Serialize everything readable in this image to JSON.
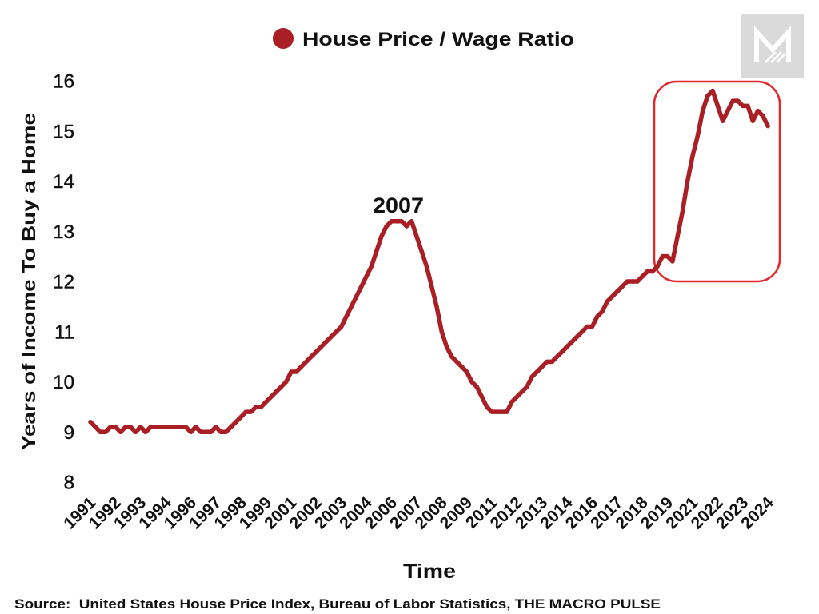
{
  "logo": {
    "icon": "macro-pulse-m-logo"
  },
  "source": {
    "text": "Source:  United States House Price Index, Bureau of Labor Statistics, THE MACRO PULSE"
  },
  "colors": {
    "series": "#A91F25",
    "highlight": "#E2262C",
    "text": "#111111",
    "logo_bg": "#DADADA",
    "logo_fg": "#FFFFFF"
  },
  "chart_data": {
    "type": "line",
    "xlabel": "Time",
    "ylabel": "Years of Income To Buy a Home",
    "ylim": [
      8,
      16
    ],
    "y_ticks": [
      8,
      9,
      10,
      11,
      12,
      13,
      14,
      15,
      16
    ],
    "x_tick_labels": [
      "1991",
      "1992",
      "1993",
      "1994",
      "1996",
      "1997",
      "1998",
      "1999",
      "2001",
      "2002",
      "2003",
      "2004",
      "2006",
      "2007",
      "2008",
      "2009",
      "2011",
      "2012",
      "2013",
      "2014",
      "2016",
      "2017",
      "2018",
      "2019",
      "2021",
      "2022",
      "2023",
      "2024"
    ],
    "grid": false,
    "legend_position": "top-center",
    "series": [
      {
        "name": "House Price / Wage Ratio",
        "color": "#A91F25",
        "points": [
          [
            1991.0,
            9.2
          ],
          [
            1991.25,
            9.1
          ],
          [
            1991.5,
            9.0
          ],
          [
            1991.75,
            9.0
          ],
          [
            1992.0,
            9.1
          ],
          [
            1992.25,
            9.1
          ],
          [
            1992.5,
            9.0
          ],
          [
            1992.75,
            9.1
          ],
          [
            1993.0,
            9.1
          ],
          [
            1993.25,
            9.0
          ],
          [
            1993.5,
            9.1
          ],
          [
            1993.75,
            9.0
          ],
          [
            1994.0,
            9.1
          ],
          [
            1994.25,
            9.1
          ],
          [
            1994.5,
            9.1
          ],
          [
            1994.75,
            9.1
          ],
          [
            1995.0,
            9.1
          ],
          [
            1995.25,
            9.1
          ],
          [
            1995.5,
            9.1
          ],
          [
            1995.75,
            9.1
          ],
          [
            1996.0,
            9.0
          ],
          [
            1996.25,
            9.1
          ],
          [
            1996.5,
            9.0
          ],
          [
            1996.75,
            9.0
          ],
          [
            1997.0,
            9.0
          ],
          [
            1997.25,
            9.1
          ],
          [
            1997.5,
            9.0
          ],
          [
            1997.75,
            9.0
          ],
          [
            1998.0,
            9.1
          ],
          [
            1998.25,
            9.2
          ],
          [
            1998.5,
            9.3
          ],
          [
            1998.75,
            9.4
          ],
          [
            1999.0,
            9.4
          ],
          [
            1999.25,
            9.5
          ],
          [
            1999.5,
            9.5
          ],
          [
            1999.75,
            9.6
          ],
          [
            2000.0,
            9.7
          ],
          [
            2000.25,
            9.8
          ],
          [
            2000.5,
            9.9
          ],
          [
            2000.75,
            10.0
          ],
          [
            2001.0,
            10.2
          ],
          [
            2001.25,
            10.2
          ],
          [
            2001.5,
            10.3
          ],
          [
            2001.75,
            10.4
          ],
          [
            2002.0,
            10.5
          ],
          [
            2002.25,
            10.6
          ],
          [
            2002.5,
            10.7
          ],
          [
            2002.75,
            10.8
          ],
          [
            2003.0,
            10.9
          ],
          [
            2003.25,
            11.0
          ],
          [
            2003.5,
            11.1
          ],
          [
            2003.75,
            11.3
          ],
          [
            2004.0,
            11.5
          ],
          [
            2004.25,
            11.7
          ],
          [
            2004.5,
            11.9
          ],
          [
            2004.75,
            12.1
          ],
          [
            2005.0,
            12.3
          ],
          [
            2005.25,
            12.6
          ],
          [
            2005.5,
            12.9
          ],
          [
            2005.75,
            13.1
          ],
          [
            2006.0,
            13.2
          ],
          [
            2006.25,
            13.2
          ],
          [
            2006.5,
            13.2
          ],
          [
            2006.75,
            13.1
          ],
          [
            2007.0,
            13.2
          ],
          [
            2007.25,
            12.9
          ],
          [
            2007.5,
            12.6
          ],
          [
            2007.75,
            12.3
          ],
          [
            2008.0,
            11.9
          ],
          [
            2008.25,
            11.5
          ],
          [
            2008.5,
            11.0
          ],
          [
            2008.75,
            10.7
          ],
          [
            2009.0,
            10.5
          ],
          [
            2009.25,
            10.4
          ],
          [
            2009.5,
            10.3
          ],
          [
            2009.75,
            10.2
          ],
          [
            2010.0,
            10.0
          ],
          [
            2010.25,
            9.9
          ],
          [
            2010.5,
            9.7
          ],
          [
            2010.75,
            9.5
          ],
          [
            2011.0,
            9.4
          ],
          [
            2011.25,
            9.4
          ],
          [
            2011.5,
            9.4
          ],
          [
            2011.75,
            9.4
          ],
          [
            2012.0,
            9.6
          ],
          [
            2012.25,
            9.7
          ],
          [
            2012.5,
            9.8
          ],
          [
            2012.75,
            9.9
          ],
          [
            2013.0,
            10.1
          ],
          [
            2013.25,
            10.2
          ],
          [
            2013.5,
            10.3
          ],
          [
            2013.75,
            10.4
          ],
          [
            2014.0,
            10.4
          ],
          [
            2014.25,
            10.5
          ],
          [
            2014.5,
            10.6
          ],
          [
            2014.75,
            10.7
          ],
          [
            2015.0,
            10.8
          ],
          [
            2015.25,
            10.9
          ],
          [
            2015.5,
            11.0
          ],
          [
            2015.75,
            11.1
          ],
          [
            2016.0,
            11.1
          ],
          [
            2016.25,
            11.3
          ],
          [
            2016.5,
            11.4
          ],
          [
            2016.75,
            11.6
          ],
          [
            2017.0,
            11.7
          ],
          [
            2017.25,
            11.8
          ],
          [
            2017.5,
            11.9
          ],
          [
            2017.75,
            12.0
          ],
          [
            2018.0,
            12.0
          ],
          [
            2018.25,
            12.0
          ],
          [
            2018.5,
            12.1
          ],
          [
            2018.75,
            12.2
          ],
          [
            2019.0,
            12.2
          ],
          [
            2019.25,
            12.3
          ],
          [
            2019.5,
            12.5
          ],
          [
            2019.75,
            12.5
          ],
          [
            2020.0,
            12.4
          ],
          [
            2020.25,
            12.9
          ],
          [
            2020.5,
            13.4
          ],
          [
            2020.75,
            14.0
          ],
          [
            2021.0,
            14.5
          ],
          [
            2021.25,
            14.9
          ],
          [
            2021.5,
            15.4
          ],
          [
            2021.75,
            15.7
          ],
          [
            2022.0,
            15.8
          ],
          [
            2022.25,
            15.5
          ],
          [
            2022.5,
            15.2
          ],
          [
            2022.75,
            15.4
          ],
          [
            2023.0,
            15.6
          ],
          [
            2023.25,
            15.6
          ],
          [
            2023.5,
            15.5
          ],
          [
            2023.75,
            15.5
          ],
          [
            2024.0,
            15.2
          ],
          [
            2024.25,
            15.4
          ],
          [
            2024.5,
            15.3
          ],
          [
            2024.75,
            15.1
          ]
        ]
      }
    ],
    "annotations": [
      {
        "text": "2007"
      }
    ]
  }
}
